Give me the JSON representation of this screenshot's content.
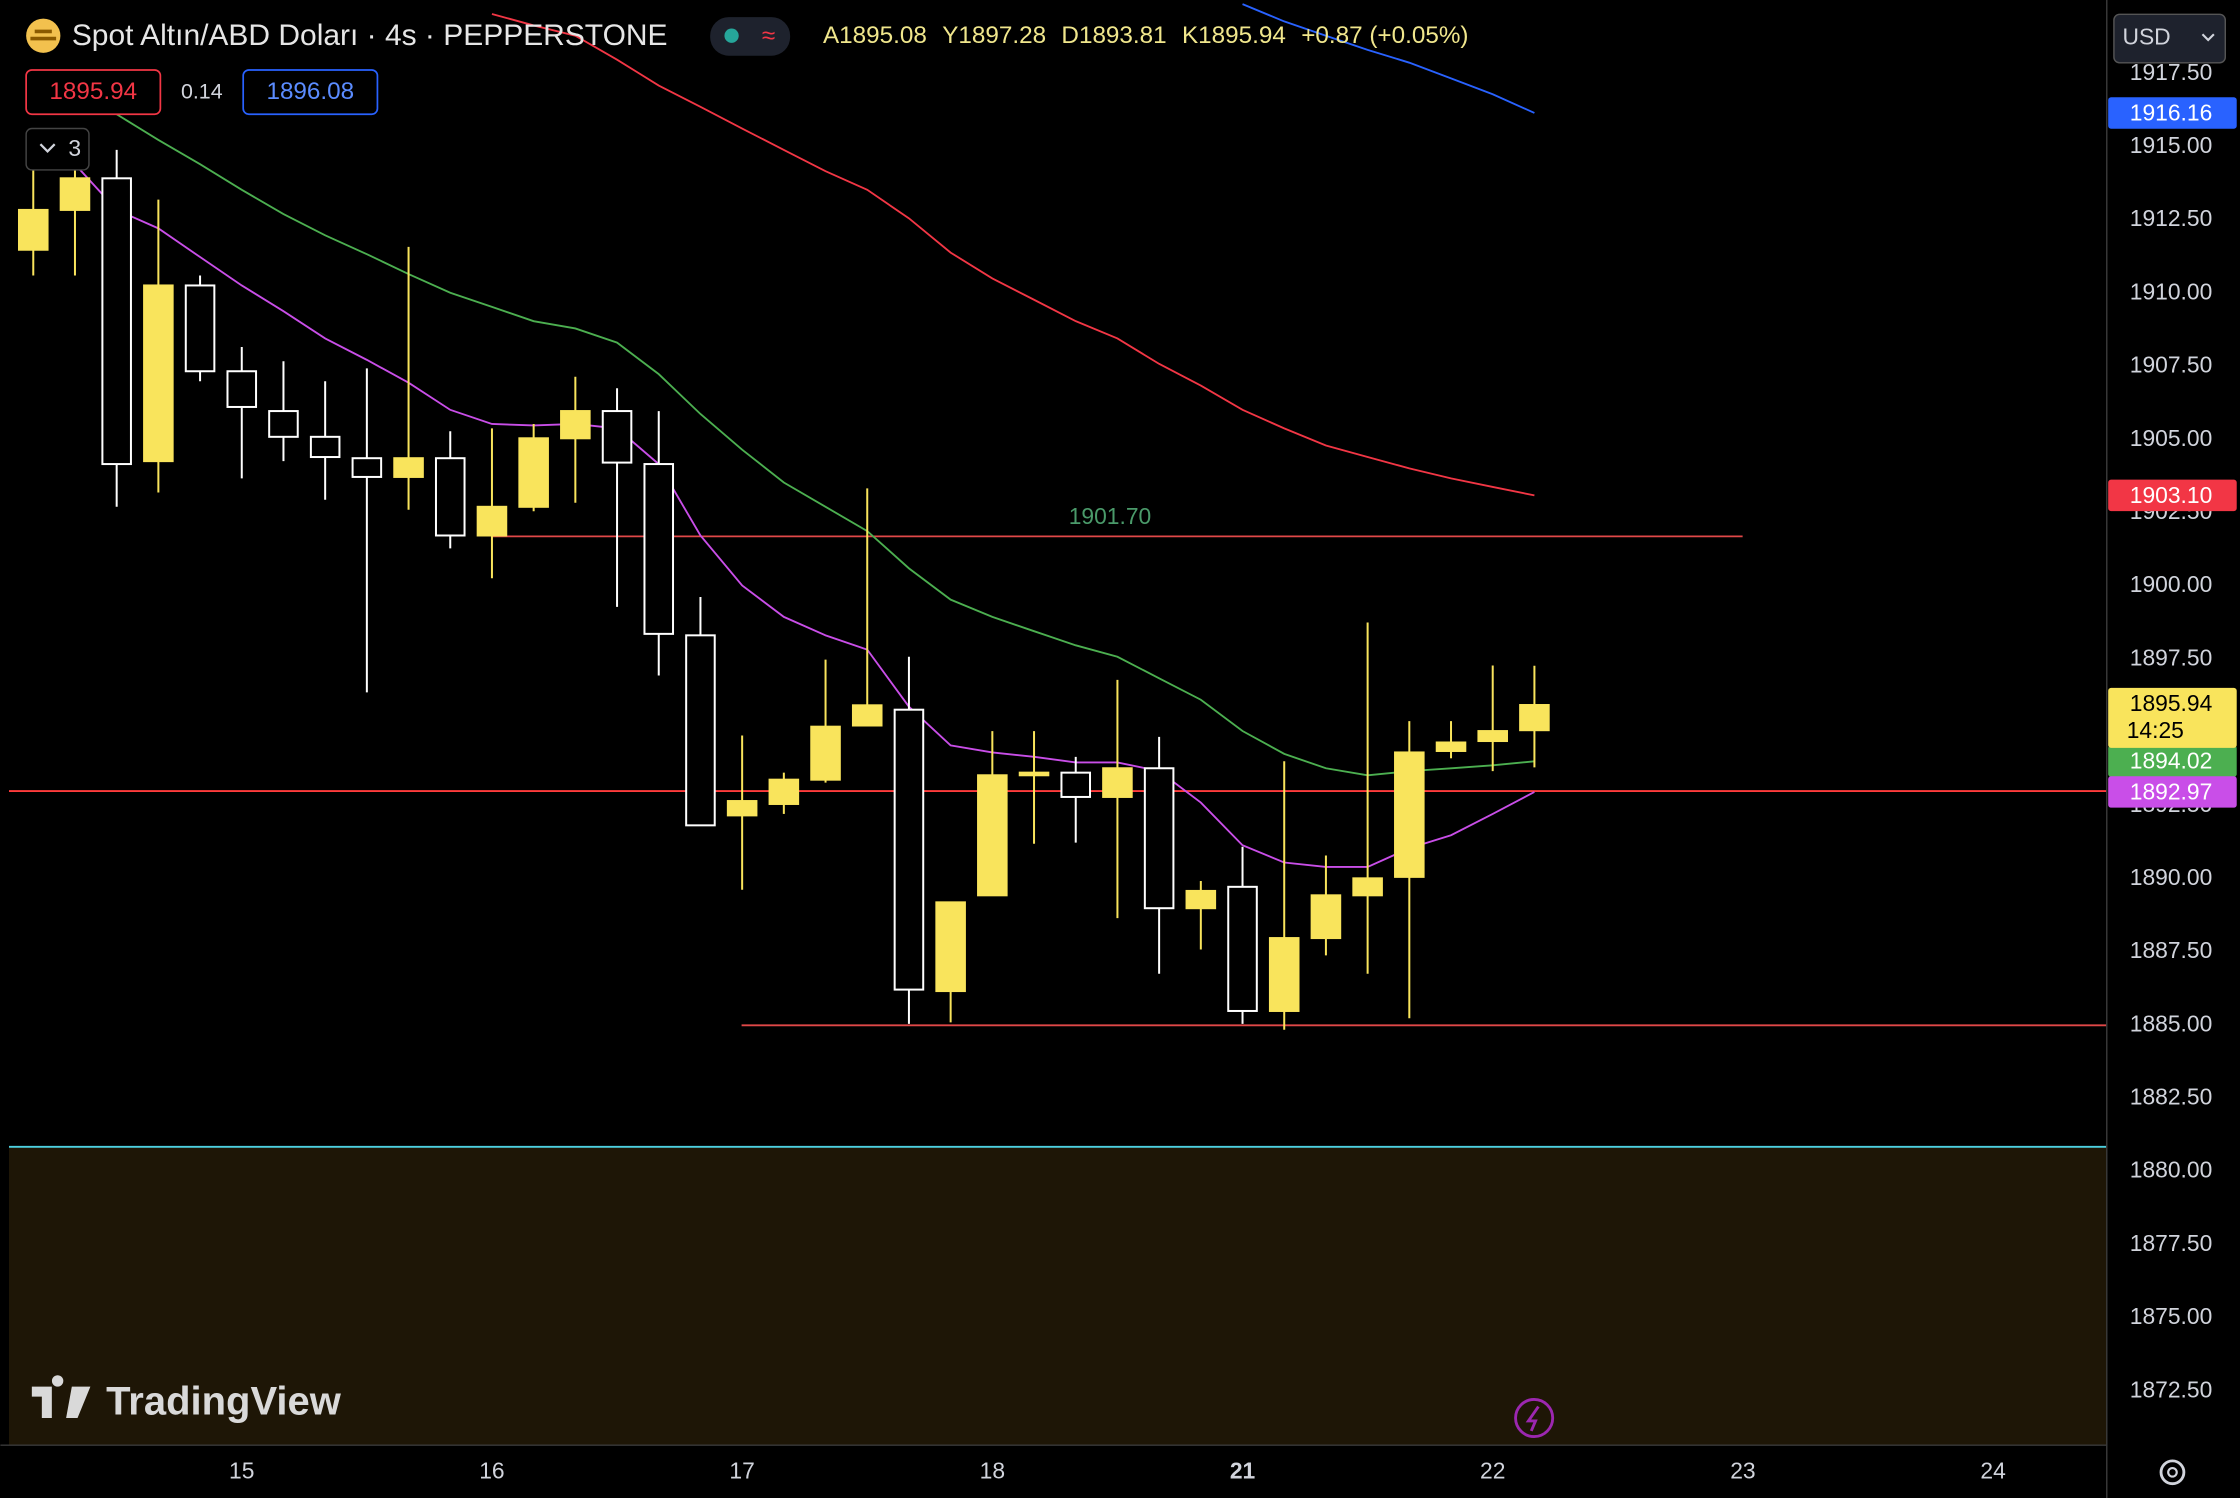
{
  "chart_data": {
    "type": "candlestick",
    "title": "Spot Altın/ABD Doları · 4s · PEPPERSTONE",
    "ohlc_labels": [
      "A",
      "Y",
      "D",
      "K"
    ],
    "change": "+0.87 (+0.05%)",
    "trade": {
      "sell": 1895.94,
      "spread": 0.14,
      "buy": 1896.08
    },
    "indicator_count": 3,
    "currency": "USD",
    "countdown": "14:25",
    "brand": "TradingView",
    "up_color": "#f9e45c",
    "down_color": "#ffffff",
    "categories": [
      null,
      null,
      null,
      null,
      null,
      "15",
      null,
      null,
      null,
      null,
      null,
      "16",
      null,
      null,
      null,
      null,
      null,
      "17",
      null,
      null,
      null,
      null,
      null,
      "18",
      null,
      null,
      null,
      null,
      null,
      "21",
      null,
      null,
      null,
      null,
      null,
      "22",
      null,
      null,
      null,
      null,
      null,
      "23",
      null,
      null,
      null,
      null,
      null,
      "24",
      null
    ],
    "open": [
      1911.49,
      1912.85,
      1913.93,
      1904.27,
      1910.27,
      1907.34,
      1905.98,
      1905.1,
      1904.37,
      1903.73,
      1904.37,
      1901.73,
      1902.71,
      1905.05,
      1905.98,
      1904.17,
      1898.32,
      1892.17,
      1892.56,
      1893.39,
      1895.24,
      1895.78,
      1886.17,
      1889.44,
      1893.54,
      1893.63,
      1892.8,
      1893.78,
      1889.0,
      1889.73,
      1885.49,
      1887.98,
      1889.44,
      1890.07,
      1894.37,
      1894.71,
      1895.08,
      null,
      null,
      null,
      null,
      null,
      null,
      null,
      null,
      null,
      null,
      null,
      null
    ],
    "high": [
      1914.27,
      1914.41,
      1914.9,
      1913.2,
      1910.61,
      1908.17,
      1907.68,
      1907.0,
      1907.44,
      1911.59,
      1905.29,
      1905.39,
      1905.54,
      1907.15,
      1906.76,
      1905.98,
      1899.63,
      1894.9,
      1893.63,
      1897.49,
      1903.34,
      1897.59,
      1889.2,
      1895.05,
      1895.05,
      1894.17,
      1896.8,
      1894.85,
      1889.93,
      1891.1,
      1894.02,
      1890.8,
      1898.76,
      1895.39,
      1895.39,
      1897.29,
      1897.28,
      null,
      null,
      null,
      null,
      null,
      null,
      null,
      null,
      null,
      null,
      null,
      null
    ],
    "low": [
      1910.61,
      1910.61,
      1902.71,
      1903.2,
      1907.0,
      1903.68,
      1904.27,
      1902.95,
      1896.37,
      1902.61,
      1901.29,
      1900.27,
      1902.56,
      1902.85,
      1899.29,
      1896.95,
      1891.83,
      1889.63,
      1892.22,
      1893.29,
      1895.24,
      1885.05,
      1885.1,
      1889.44,
      1891.2,
      1891.24,
      1888.66,
      1886.76,
      1887.59,
      1885.05,
      1884.85,
      1887.39,
      1886.76,
      1885.24,
      1894.12,
      1893.68,
      1893.81,
      null,
      null,
      null,
      null,
      null,
      null,
      null,
      null,
      null,
      null,
      null,
      null
    ],
    "close": [
      1912.85,
      1913.93,
      1904.17,
      1910.27,
      1907.34,
      1906.12,
      1905.1,
      1904.41,
      1903.73,
      1904.37,
      1901.73,
      1902.71,
      1905.05,
      1905.98,
      1904.22,
      1898.37,
      1891.83,
      1892.66,
      1893.39,
      1895.2,
      1895.93,
      1886.22,
      1889.2,
      1893.54,
      1893.63,
      1892.8,
      1893.78,
      1889.0,
      1889.59,
      1885.49,
      1887.98,
      1889.44,
      1890.02,
      1894.32,
      1894.66,
      1895.05,
      1895.94,
      null,
      null,
      null,
      null,
      null,
      null,
      null,
      null,
      null,
      null,
      null,
      null
    ],
    "overlays": [
      {
        "color": "#c94ee8",
        "values": [
          1915.29,
          1914.41,
          1912.85,
          1912.22,
          1911.24,
          1910.27,
          1909.39,
          1908.46,
          1907.73,
          1906.95,
          1906.02,
          1905.54,
          1905.49,
          1905.54,
          1905.39,
          1904.17,
          1901.73,
          1900.02,
          1898.95,
          1898.32,
          1897.83,
          1895.88,
          1894.56,
          1894.32,
          1894.17,
          1893.98,
          1893.98,
          1893.68,
          1892.61,
          1891.15,
          1890.56,
          1890.41,
          1890.41,
          1891.05,
          1891.49,
          1892.22,
          1892.97,
          null,
          null,
          null,
          null,
          null,
          null,
          null,
          null,
          null,
          null,
          null,
          null
        ]
      },
      {
        "color": "#4caf50",
        "values": [
          1917.59,
          1917.0,
          1916.12,
          1915.24,
          1914.41,
          1913.54,
          1912.71,
          1911.98,
          1911.34,
          1910.66,
          1910.02,
          1909.54,
          1909.05,
          1908.8,
          1908.32,
          1907.24,
          1905.88,
          1904.66,
          1903.54,
          1902.71,
          1901.88,
          1900.61,
          1899.54,
          1898.95,
          1898.46,
          1897.98,
          1897.59,
          1896.85,
          1896.12,
          1895.05,
          1894.27,
          1893.78,
          1893.54,
          1893.68,
          1893.78,
          1893.88,
          1894.02,
          null,
          null,
          null,
          null,
          null,
          null,
          null,
          null,
          null,
          null,
          null,
          null
        ]
      },
      {
        "color": "#f23645",
        "values": [
          null,
          null,
          null,
          null,
          null,
          null,
          null,
          null,
          null,
          null,
          null,
          1919.54,
          1919.15,
          1918.8,
          1917.98,
          1917.1,
          1916.37,
          1915.63,
          1914.9,
          1914.17,
          1913.54,
          1912.56,
          1911.39,
          1910.51,
          1909.78,
          1909.05,
          1908.46,
          1907.59,
          1906.85,
          1906.02,
          1905.39,
          1904.8,
          1904.41,
          1904.02,
          1903.68,
          1903.39,
          1903.1,
          null,
          null,
          null,
          null,
          null,
          null,
          null,
          null,
          null,
          null,
          null,
          null
        ]
      },
      {
        "color": "#2962ff",
        "values": [
          null,
          null,
          null,
          null,
          null,
          null,
          null,
          null,
          null,
          null,
          null,
          null,
          null,
          null,
          null,
          null,
          null,
          null,
          null,
          null,
          null,
          null,
          null,
          null,
          null,
          null,
          null,
          null,
          null,
          1919.88,
          1919.29,
          1918.8,
          1918.32,
          1917.88,
          1917.34,
          1916.8,
          1916.16,
          null,
          null,
          null,
          null,
          null,
          null,
          null,
          null,
          null,
          null,
          null,
          null
        ]
      }
    ],
    "price_tags": [
      {
        "value": 1916.16,
        "color": "#2962ff"
      },
      {
        "value": 1903.1,
        "label": "1903.10",
        "color": "#f23645"
      },
      {
        "value": 1894.02,
        "color": "#4caf50"
      },
      {
        "value": 1892.97,
        "color": "#c94ee8"
      }
    ],
    "levels": [
      {
        "value": 1901.7,
        "label": "1901.70",
        "color": "#e04848"
      },
      {
        "value": 1885,
        "color": "#e04848"
      },
      {
        "value": 1893,
        "color": "#ff3b3b"
      },
      {
        "value": 1880.85,
        "color": "#4dd0e1",
        "fill_below": "#1e1606"
      }
    ],
    "ylim": [
      1870.66,
      1920.02
    ],
    "yticks": [
      {
        "value": 1872.5,
        "label": "1872.50"
      },
      {
        "value": 1875,
        "label": "1875.00"
      },
      {
        "value": 1877.5,
        "label": "1877.50"
      },
      {
        "value": 1880,
        "label": "1880.00"
      },
      {
        "value": 1882.5,
        "label": "1882.50"
      },
      {
        "value": 1885,
        "label": "1885.00"
      },
      {
        "value": 1887.5,
        "label": "1887.50"
      },
      {
        "value": 1890,
        "label": "1890.00"
      },
      {
        "value": 1892.5,
        "label": "1892.50"
      },
      {
        "value": 1895,
        "label": "1895.00"
      },
      {
        "value": 1897.5,
        "label": "1897.50"
      },
      {
        "value": 1900,
        "label": "1900.00"
      },
      {
        "value": 1902.5,
        "label": "1902.50"
      },
      {
        "value": 1905,
        "label": "1905.00"
      },
      {
        "value": 1907.5,
        "label": "1907.50"
      },
      {
        "value": 1910,
        "label": "1910.00"
      },
      {
        "value": 1912.5,
        "label": "1912.50"
      },
      {
        "value": 1915,
        "label": "1915.00"
      },
      {
        "value": 1917.5,
        "label": "1917.50"
      }
    ],
    "grid": false
  }
}
